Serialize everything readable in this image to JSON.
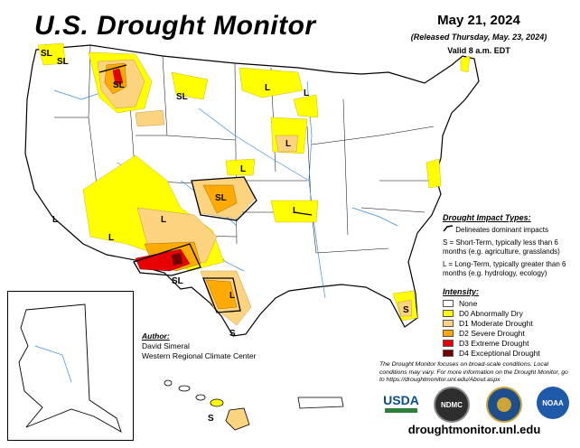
{
  "header": {
    "title": "U.S. Drought Monitor",
    "date": "May 21, 2024",
    "released": "(Released Thursday, May. 23, 2024)",
    "valid": "Valid 8 a.m. EDT"
  },
  "map_labels": [
    "SL",
    "SL",
    "SL",
    "SL",
    "L",
    "L",
    "L",
    "L",
    "SL",
    "L",
    "L",
    "L",
    "SL",
    "L",
    "S",
    "S",
    "L",
    "S"
  ],
  "impact": {
    "heading": "Drought Impact Types:",
    "delineates": "Delineates dominant impacts",
    "short_term": "S = Short-Term, typically less than 6 months (e.g. agriculture, grasslands)",
    "long_term": "L = Long-Term, typically greater than 6 months (e.g. hydrology, ecology)"
  },
  "intensity": {
    "heading": "Intensity:",
    "levels": [
      {
        "label": "None",
        "color": "#ffffff"
      },
      {
        "label": "D0 Abnormally Dry",
        "color": "#ffff00"
      },
      {
        "label": "D1 Moderate Drought",
        "color": "#fcd37f"
      },
      {
        "label": "D2 Severe Drought",
        "color": "#ffaa00"
      },
      {
        "label": "D3 Extreme Drought",
        "color": "#e60000"
      },
      {
        "label": "D4 Exceptional Drought",
        "color": "#730000"
      }
    ]
  },
  "author": {
    "heading": "Author:",
    "name": "David Simeral",
    "org": "Western Regional Climate Center"
  },
  "note": "The Drought Monitor focuses on broad-scale conditions. Local conditions may vary. For more information on the Drought Monitor, go to https://droughtmonitor.unl.edu/About.aspx",
  "logos": [
    "USDA",
    "NDMC",
    "NOAA"
  ],
  "url": "droughtmonitor.unl.edu"
}
